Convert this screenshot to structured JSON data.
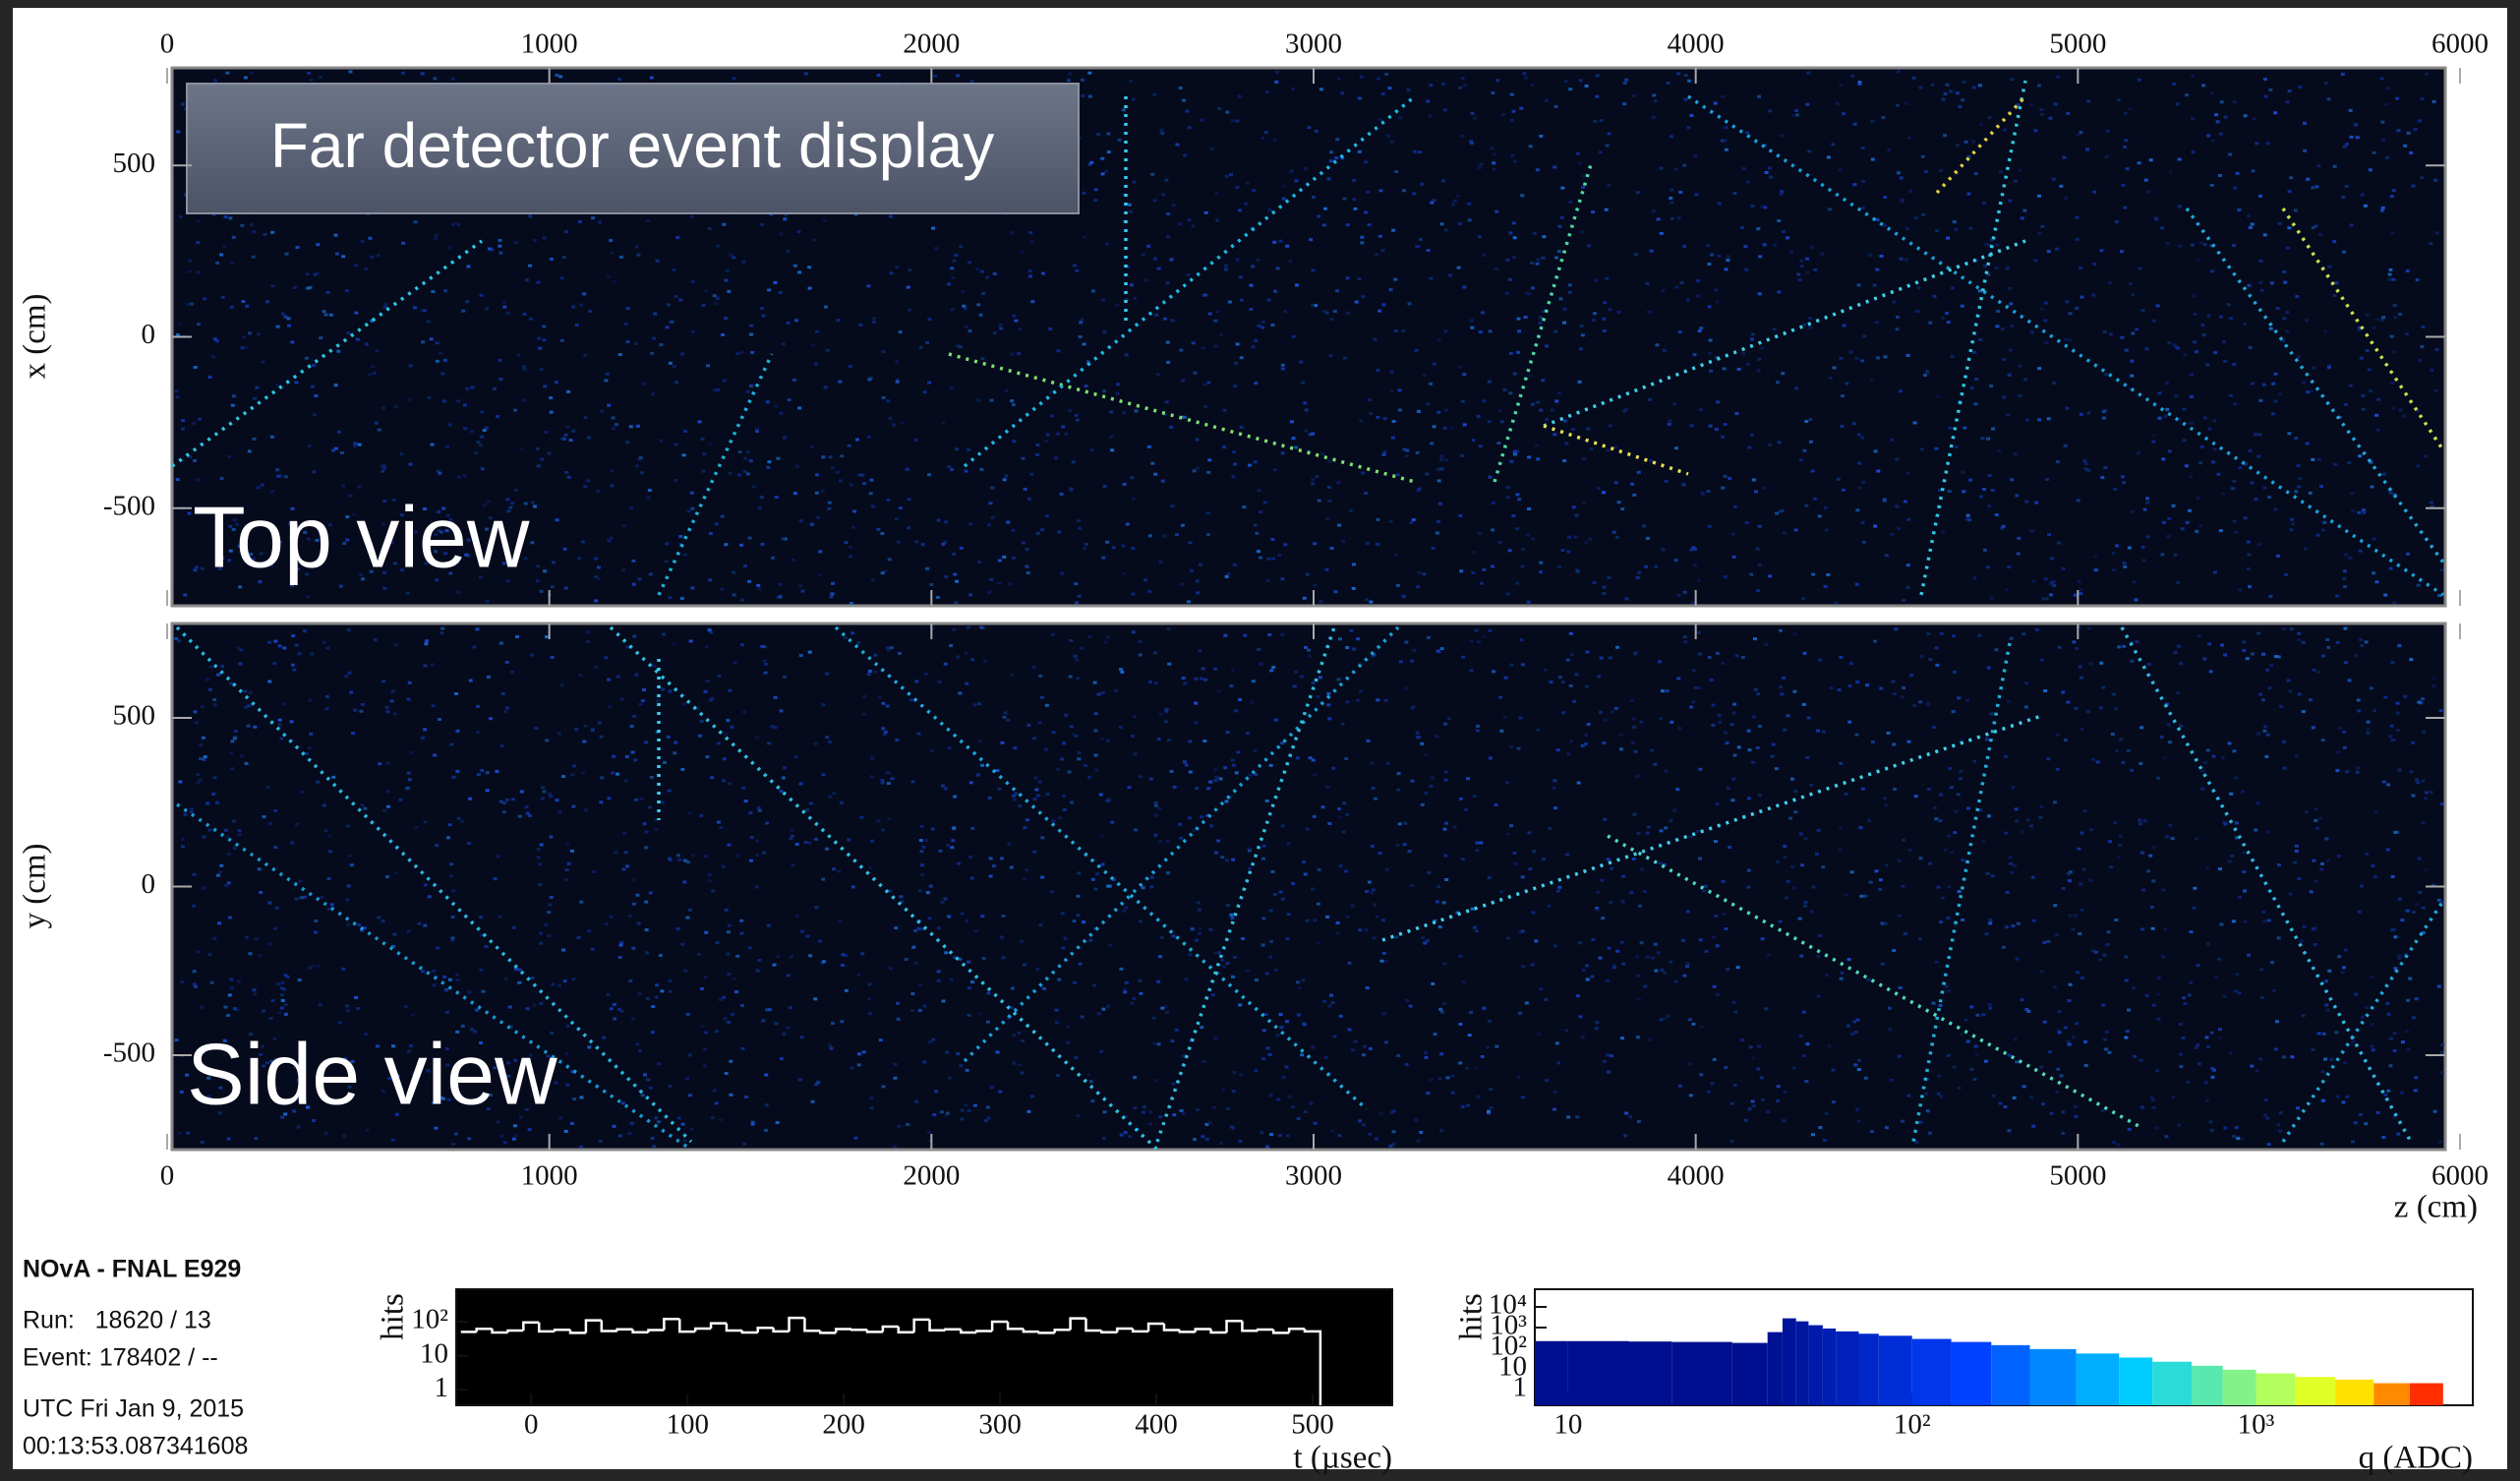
{
  "title": "Far detector event display",
  "top_view": {
    "label": "Top view",
    "axis_label": "x (cm)",
    "ylim": [
      -785,
      785
    ],
    "yticks": [
      -500,
      0,
      500
    ]
  },
  "side_view": {
    "label": "Side view",
    "axis_label": "y (cm)",
    "ylim": [
      -780,
      780
    ],
    "yticks": [
      -500,
      0,
      500
    ]
  },
  "z_axis": {
    "label": "z (cm)",
    "xlim": [
      0,
      6000
    ],
    "xticks": [
      0,
      1000,
      2000,
      3000,
      4000,
      5000,
      6000
    ]
  },
  "info": {
    "experiment": "NOvA - FNAL E929",
    "run": "Run:   18620 / 13",
    "event": "Event: 178402 / --",
    "date": "UTC Fri Jan 9, 2015",
    "time": "00:13:53.087341608"
  },
  "time_hist": {
    "xlabel": "t (µsec)",
    "ylabel": "hits",
    "log_y": true,
    "color": "#ffffff",
    "xlim": [
      -48,
      551
    ],
    "ylim": [
      0.35,
      900
    ],
    "xticks": [
      0,
      100,
      200,
      300,
      400,
      500
    ],
    "yticks": [
      1,
      10,
      {
        "value": 100,
        "label": "10²"
      }
    ],
    "bins": [
      -45,
      -35,
      -25,
      -15,
      -5,
      5,
      15,
      25,
      35,
      45,
      55,
      65,
      75,
      85,
      95,
      105,
      115,
      125,
      135,
      145,
      155,
      165,
      175,
      185,
      195,
      205,
      215,
      225,
      235,
      245,
      255,
      265,
      275,
      285,
      295,
      305,
      315,
      325,
      335,
      345,
      355,
      365,
      375,
      385,
      395,
      405,
      415,
      425,
      435,
      445,
      455,
      465,
      475,
      485,
      495,
      505
    ],
    "counts": [
      50,
      62,
      48,
      55,
      95,
      52,
      58,
      47,
      110,
      53,
      60,
      49,
      57,
      120,
      51,
      63,
      90,
      55,
      48,
      66,
      52,
      130,
      54,
      47,
      61,
      58,
      50,
      72,
      49,
      115,
      56,
      60,
      48,
      53,
      100,
      62,
      51,
      47,
      58,
      125,
      55,
      49,
      63,
      52,
      88,
      57,
      50,
      61,
      48,
      105,
      54,
      59,
      47,
      62,
      52
    ]
  },
  "charge_hist": {
    "xlabel": "q (ADC)",
    "ylabel": "hits",
    "log_x": true,
    "log_y": true,
    "xlim": [
      8,
      4270
    ],
    "ylim": [
      0.17,
      72000
    ],
    "xticks": [
      10,
      {
        "value": 100,
        "label": "10²"
      },
      {
        "value": 1000,
        "label": "10³"
      }
    ],
    "yticks": [
      1,
      10,
      {
        "value": 100,
        "label": "10²"
      },
      {
        "value": 1000,
        "label": "10³"
      },
      {
        "value": 10000,
        "label": "10⁴"
      }
    ],
    "bins": [
      8,
      10,
      15,
      20,
      30,
      38,
      42,
      46,
      50,
      55,
      60,
      70,
      80,
      100,
      130,
      170,
      220,
      300,
      400,
      500,
      650,
      800,
      1000,
      1300,
      1700,
      2200,
      2800,
      3500
    ],
    "counts": [
      220,
      220,
      210,
      200,
      180,
      600,
      2800,
      2000,
      1300,
      900,
      650,
      500,
      400,
      280,
      200,
      140,
      90,
      55,
      35,
      22,
      14,
      9,
      6,
      4,
      3,
      2,
      2
    ]
  }
}
